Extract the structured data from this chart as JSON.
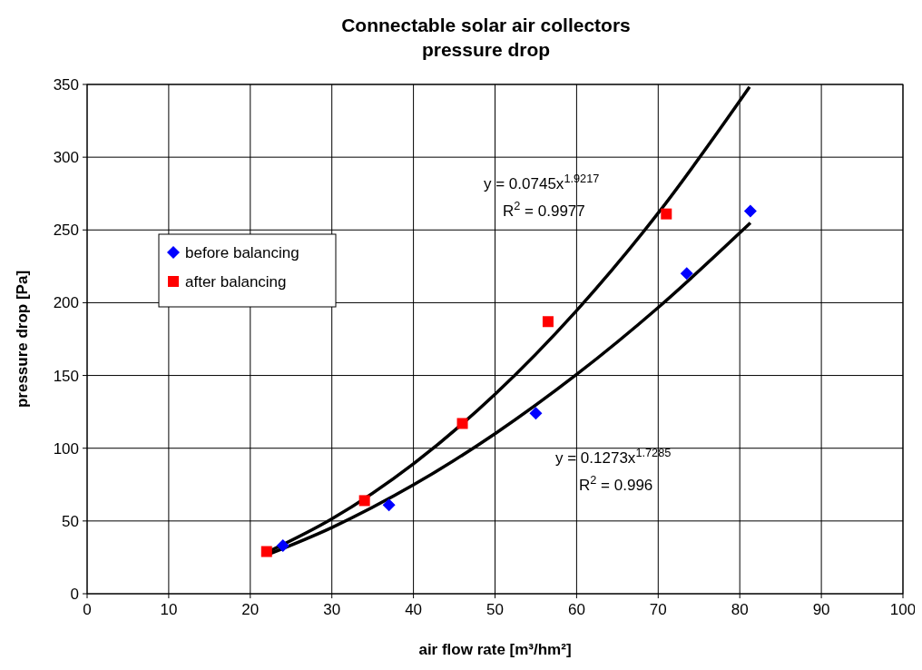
{
  "chart_data": {
    "type": "scatter",
    "title": "Connectable solar air collectors\npressure drop",
    "xlabel": "air flow rate [m³/hm²]",
    "ylabel": "pressure drop [Pa]",
    "xlim": [
      0,
      100
    ],
    "xticks": [
      0,
      10,
      20,
      30,
      40,
      50,
      60,
      70,
      80,
      90,
      100
    ],
    "ylim": [
      0,
      350
    ],
    "yticks": [
      0,
      50,
      100,
      150,
      200,
      250,
      300,
      350
    ],
    "grid": true,
    "legend": "left",
    "series": [
      {
        "name": "before balancing",
        "marker": "diamond",
        "color": "#0000ff",
        "x": [
          24,
          37,
          55,
          73.5,
          81.3
        ],
        "values": [
          33,
          61,
          124,
          220,
          263
        ]
      },
      {
        "name": "after balancing",
        "marker": "square",
        "color": "#ff0000",
        "x": [
          22,
          34,
          46,
          56.5,
          71
        ],
        "values": [
          29,
          64,
          117,
          187,
          261
        ]
      },
      {
        "type": "line",
        "marker": "none",
        "color": "#000000",
        "x": [
          22,
          30,
          40,
          50,
          60,
          70,
          81.2
        ],
        "values": [
          28.3,
          51.4,
          89.3,
          137.1,
          194.6,
          261.6,
          348.3
        ]
      },
      {
        "type": "line",
        "marker": "none",
        "color": "#000000",
        "x": [
          22,
          30,
          40,
          50,
          60,
          70,
          81.3
        ],
        "values": [
          26.6,
          45.5,
          74.8,
          110,
          150.7,
          196.7,
          254.9
        ]
      }
    ],
    "annotations": [
      "y = 0.0745x$^{1.9217}$",
      "R$^{2}$ = 0.9977",
      "y = 0.1273x$^{1.7285}$",
      "R$^{2}$ = 0.996"
    ]
  }
}
